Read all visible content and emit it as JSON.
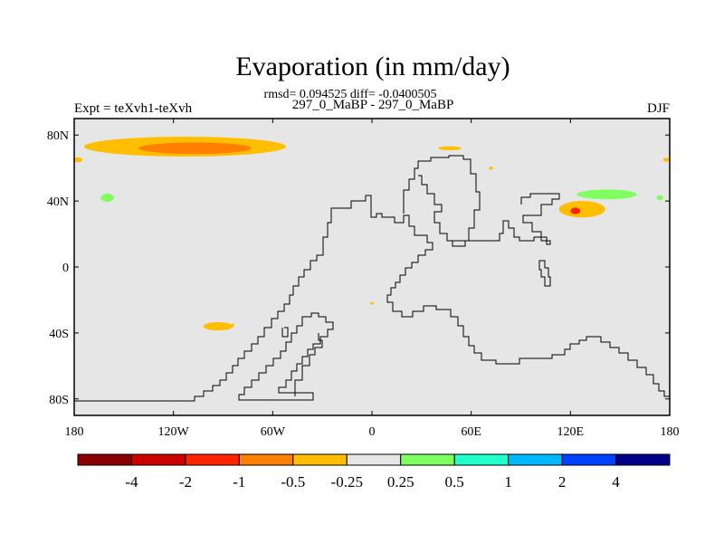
{
  "chart_data": {
    "type": "heatmap",
    "title": "Evaporation (in mm/day)",
    "stats": "rmsd= 0.094525 diff= -0.0400505",
    "left_label": "Expt = teXvh1-teXvh",
    "center_label": "297_0_MaBP - 297_0_MaBP",
    "right_label": "DJF",
    "x_ticks": [
      {
        "value": -180,
        "label": "180"
      },
      {
        "value": -120,
        "label": "120W"
      },
      {
        "value": -60,
        "label": "60W"
      },
      {
        "value": 0,
        "label": "0"
      },
      {
        "value": 60,
        "label": "60E"
      },
      {
        "value": 120,
        "label": "120E"
      },
      {
        "value": 180,
        "label": "180"
      }
    ],
    "y_ticks": [
      {
        "value": 80,
        "label": "80N"
      },
      {
        "value": 40,
        "label": "40N"
      },
      {
        "value": 0,
        "label": "0"
      },
      {
        "value": -40,
        "label": "40S"
      },
      {
        "value": -80,
        "label": "80S"
      }
    ],
    "xlim": [
      -180,
      180
    ],
    "ylim": [
      -90,
      90
    ],
    "background_color": "#e6e6e6",
    "colorbar": {
      "colors": [
        "#8b0000",
        "#cd0000",
        "#ff2400",
        "#ff7f00",
        "#ffbf00",
        "#e6e6e6",
        "#80ff60",
        "#20ffcc",
        "#00b8ff",
        "#0040ff",
        "#00008b"
      ],
      "boundary_labels": [
        "-4",
        "-2",
        "-1",
        "-0.5",
        "-0.25",
        "0.25",
        "0.5",
        "1",
        "2",
        "4"
      ]
    },
    "anomalies": [
      {
        "lon": -113,
        "lat": 73,
        "rlon": 61,
        "rlat": 6,
        "color": "#ffbf00"
      },
      {
        "lon": -107,
        "lat": 72,
        "rlon": 34,
        "rlat": 3.5,
        "color": "#ff7f00"
      },
      {
        "lon": 127,
        "lat": 35,
        "rlon": 14,
        "rlat": 5,
        "color": "#ffbf00"
      },
      {
        "lon": 123,
        "lat": 34,
        "rlon": 3,
        "rlat": 2,
        "color": "#ff2400"
      },
      {
        "lon": 142,
        "lat": 44,
        "rlon": 18,
        "rlat": 3,
        "color": "#80ff60"
      },
      {
        "lon": 174,
        "lat": 42,
        "rlon": 2,
        "rlat": 1.5,
        "color": "#80ff60"
      },
      {
        "lon": -160,
        "lat": 42,
        "rlon": 4,
        "rlat": 2.5,
        "color": "#80ff60"
      },
      {
        "lon": -93,
        "lat": -36,
        "rlon": 9,
        "rlat": 2.5,
        "color": "#ffbf00"
      },
      {
        "lon": 47,
        "lat": 72,
        "rlon": 7,
        "rlat": 1.2,
        "color": "#ffbf00"
      },
      {
        "lon": -178,
        "lat": 65,
        "rlon": 3,
        "rlat": 1.5,
        "color": "#ffbf00"
      },
      {
        "lon": 178,
        "lat": 65,
        "rlon": 2,
        "rlat": 1.2,
        "color": "#ffbf00"
      },
      {
        "lon": 72,
        "lat": 60,
        "rlon": 1.2,
        "rlat": 1,
        "color": "#ffbf00"
      },
      {
        "lon": 0,
        "lat": -22,
        "rlon": 1,
        "rlat": 0.8,
        "color": "#ffbf00"
      },
      {
        "lon": -84,
        "lat": -35,
        "rlon": 0.8,
        "rlat": 0.8,
        "color": "#ffbf00"
      }
    ]
  }
}
